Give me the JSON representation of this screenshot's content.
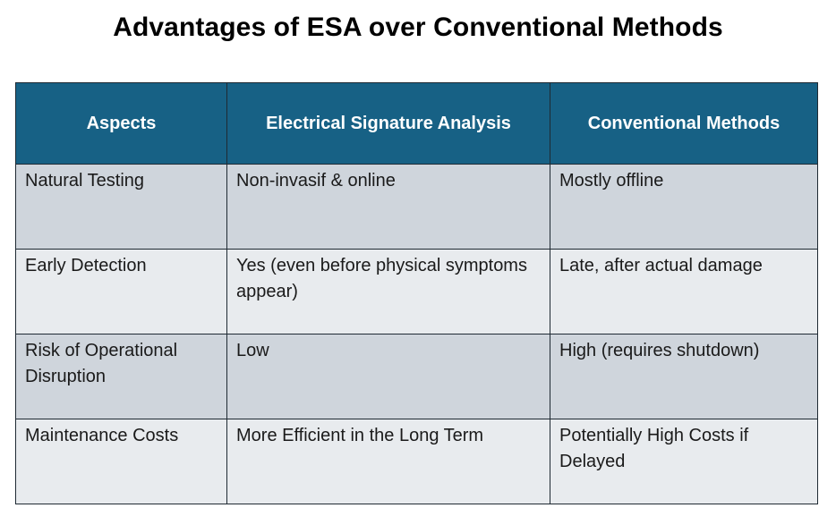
{
  "title": "Advantages of ESA over Conventional Methods",
  "table": {
    "headers": [
      "Aspects",
      "Electrical Signature Analysis",
      "Conventional Methods"
    ],
    "rows": [
      [
        "Natural Testing",
        "Non-invasif & online",
        "Mostly offline"
      ],
      [
        "Early Detection",
        "Yes (even before physical symptoms appear)",
        "Late, after actual damage"
      ],
      [
        "Risk of Operational Disruption",
        "Low",
        "High (requires shutdown)"
      ],
      [
        "Maintenance Costs",
        "More Efficient in the Long Term",
        "Potentially High Costs if Delayed"
      ]
    ]
  },
  "colors": {
    "header_bg": "#176185",
    "row_dark": "#cfd5dc",
    "row_light": "#e8ebee"
  }
}
